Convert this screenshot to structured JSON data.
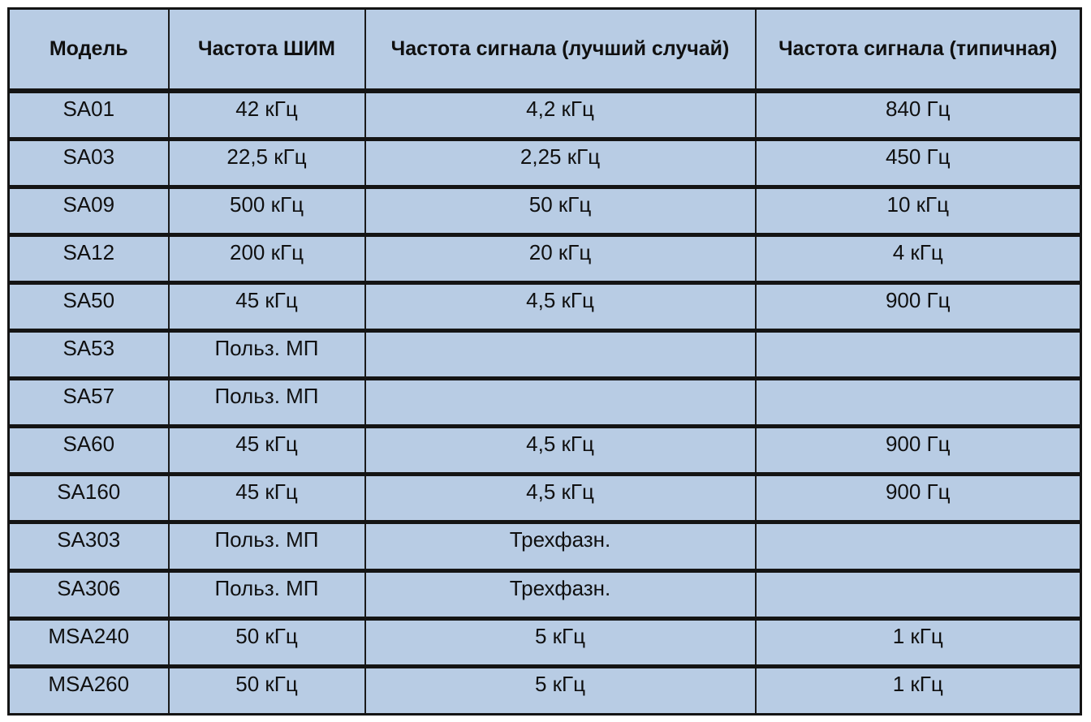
{
  "table": {
    "headers": [
      "Модель",
      "Частота ШИМ",
      "Частота сигнала (лучший случай)",
      "Частота сигнала (типичная)"
    ],
    "rows": [
      [
        "SA01",
        "42 кГц",
        "4,2 кГц",
        "840 Гц"
      ],
      [
        "SA03",
        "22,5 кГц",
        "2,25 кГц",
        "450 Гц"
      ],
      [
        "SA09",
        "500 кГц",
        "50 кГц",
        "10 кГц"
      ],
      [
        "SA12",
        "200 кГц",
        "20 кГц",
        "4 кГц"
      ],
      [
        "SA50",
        "45 кГц",
        "4,5 кГц",
        "900 Гц"
      ],
      [
        "SA53",
        "Польз. МП",
        "",
        ""
      ],
      [
        "SA57",
        "Польз. МП",
        "",
        ""
      ],
      [
        "SA60",
        "45 кГц",
        "4,5 кГц",
        "900 Гц"
      ],
      [
        "SA160",
        "45 кГц",
        "4,5 кГц",
        "900 Гц"
      ],
      [
        "SA303",
        "Польз. МП",
        "Трехфазн.",
        ""
      ],
      [
        "SA306",
        "Польз. МП",
        "Трехфазн.",
        ""
      ],
      [
        "MSA240",
        "50 кГц",
        "5 кГц",
        "1 кГц"
      ],
      [
        "MSA260",
        "50 кГц",
        "5 кГц",
        "1 кГц"
      ]
    ]
  },
  "colors": {
    "cell_background": "#b8cce4",
    "border": "#141414",
    "text": "#101010"
  }
}
